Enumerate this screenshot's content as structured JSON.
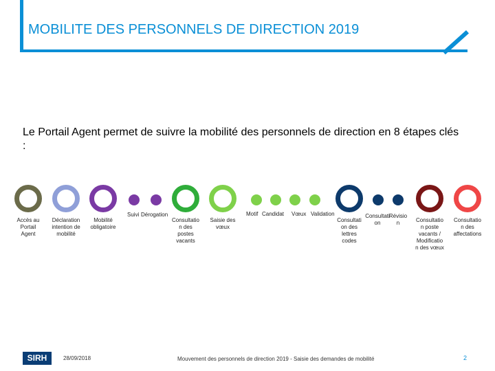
{
  "header": {
    "title": "MOBILITE DES PERSONNELS DE DIRECTION 2019"
  },
  "intro": {
    "text": "Le Portail Agent permet de suivre la mobilité des personnels de direction en 8 étapes clés :"
  },
  "colors": {
    "brand_blue": "#0a8fd6",
    "step_olive": "#6b6b4a",
    "step_lavender": "#8f9fd8",
    "step_purple": "#7a3aa4",
    "step_green": "#2fad3a",
    "step_lightgreen": "#7fd14a",
    "step_navy": "#0d3a6b",
    "step_darkred": "#7a1616",
    "step_red": "#ef4646"
  },
  "steps": {
    "acces": [
      "Accès au",
      "Portail",
      "Agent"
    ],
    "declaration": [
      "Déclaration",
      "intention de",
      "mobilité"
    ],
    "mobilite": [
      "Mobilité",
      "obligatoire"
    ],
    "suivi": "Suivi",
    "derogation": "Dérogation",
    "consultation_postes": [
      "Consultatio",
      "n des",
      "postes",
      "vacants"
    ],
    "saisie": [
      "Saisie des",
      "vœux"
    ],
    "motif": "Motif",
    "candidat": "Candidat",
    "voeux": "Vœux",
    "validation": "Validation",
    "consultation_lettres": [
      "Consultati",
      "on des",
      "lettres",
      "codes"
    ],
    "consultati_on": [
      "Consultati",
      "on"
    ],
    "revisio_n": [
      "Révisio",
      "n"
    ],
    "consultation_modif": [
      "Consultatio",
      "n poste",
      "vacants /",
      "Modificatio",
      "n des vœux"
    ],
    "consultation_affect": [
      "Consultatio",
      "n des",
      "affectations"
    ]
  },
  "footer": {
    "logo": "SIRH",
    "date": "28/09/2018",
    "caption": "Mouvement des personnels de direction 2019 - Saisie des demandes de mobilité",
    "page": "2"
  }
}
